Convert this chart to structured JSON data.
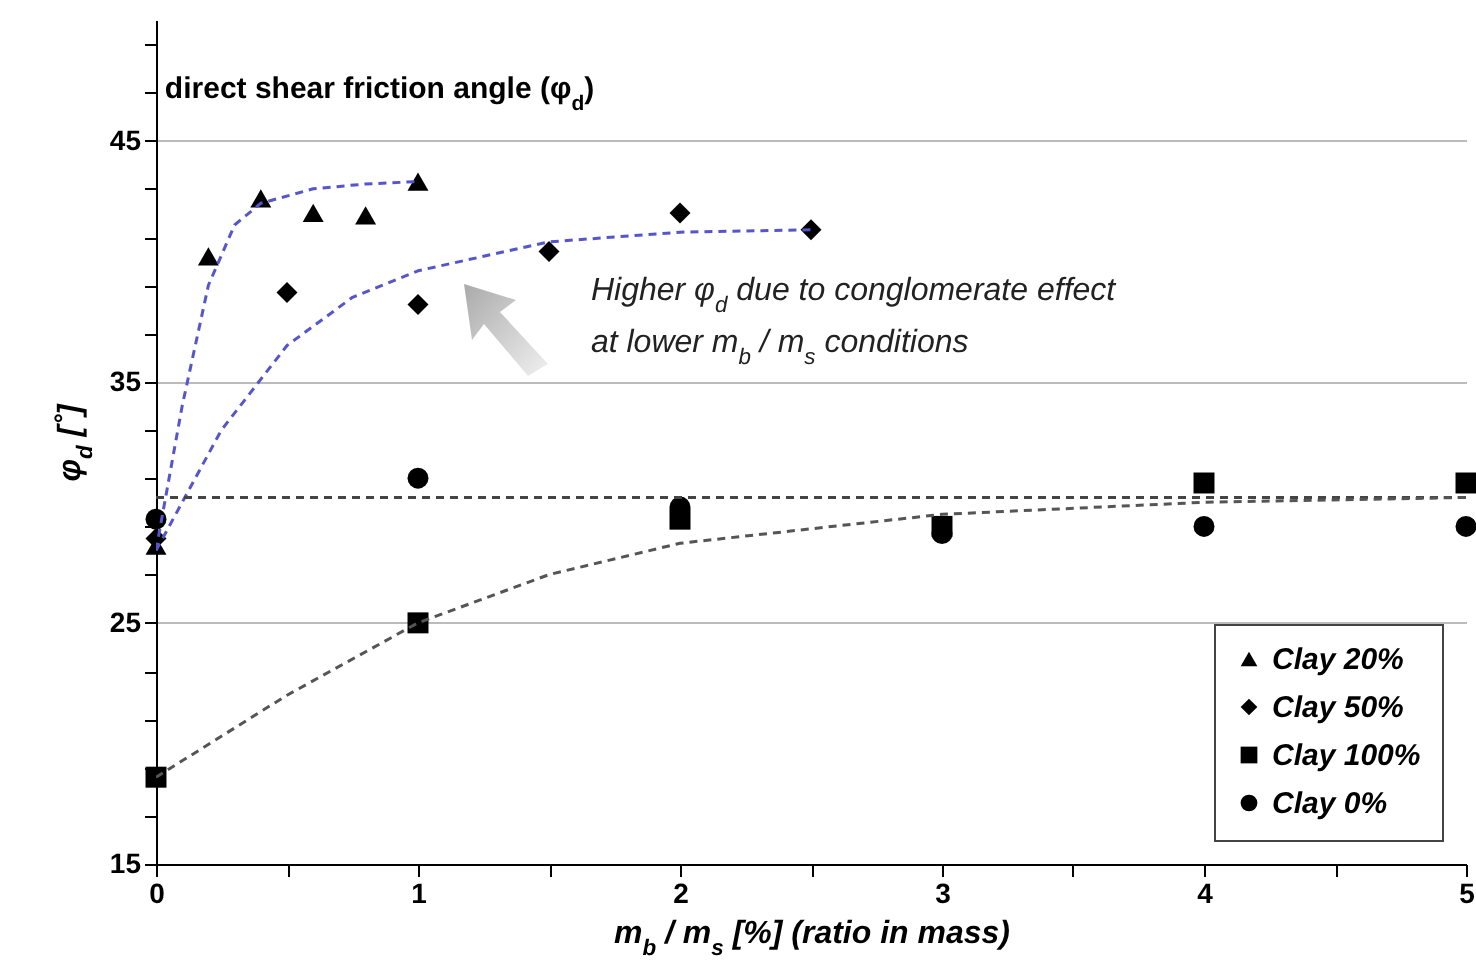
{
  "chart_data": {
    "type": "scatter",
    "title": "direct shear friction angle (φ$_{d}$)",
    "xlabel": "m$_{b}$ / m$_{s}$ [%] (ratio in mass)",
    "ylabel": "φ$_{d}$ [˚]",
    "annotations": [
      "Higher φ$_{d}$ due to conglomerate effect",
      "at lower m$_{b}$ / m$_{s}$ conditions"
    ],
    "series": [
      {
        "name": "Clay 20%",
        "color": "#000000",
        "marker": "triangle",
        "x": [
          0,
          0.2,
          0.4,
          0.6,
          0.8,
          1
        ],
        "values": [
          28.2,
          40.2,
          42.6,
          42.0,
          41.9,
          43.3
        ]
      },
      {
        "name": "Clay 50%",
        "color": "#000000",
        "marker": "diamond",
        "x": [
          0,
          0.5,
          1,
          1.5,
          2,
          2.5
        ],
        "values": [
          28.5,
          38.7,
          38.2,
          40.4,
          42.0,
          41.3
        ]
      },
      {
        "name": "Clay 100%",
        "color": "#000000",
        "marker": "square",
        "x": [
          0,
          1,
          2,
          3,
          4,
          5
        ],
        "values": [
          18.6,
          25.0,
          29.3,
          29.0,
          30.8,
          30.8
        ]
      },
      {
        "name": "Clay 0%",
        "color": "#000000",
        "marker": "circle",
        "x": [
          0,
          1,
          2,
          3,
          4,
          5
        ],
        "values": [
          29.3,
          31.0,
          29.8,
          28.7,
          29.0,
          29.0
        ]
      },
      {
        "type": "line",
        "color": "#5555cc",
        "line_style": "dashed",
        "x": [
          0,
          0.1,
          0.2,
          0.3,
          0.4,
          0.6,
          0.8,
          1
        ],
        "values": [
          28.0,
          34.0,
          39.0,
          41.5,
          42.4,
          43.0,
          43.2,
          43.3
        ]
      },
      {
        "type": "line",
        "color": "#5555cc",
        "line_style": "dashed",
        "x": [
          0,
          0.25,
          0.5,
          0.75,
          1,
          1.5,
          2,
          2.5
        ],
        "values": [
          28.0,
          33.0,
          36.5,
          38.5,
          39.6,
          40.8,
          41.2,
          41.3
        ]
      },
      {
        "type": "line",
        "color": "#444444",
        "line_style": "dashed",
        "x": [
          0,
          5
        ],
        "values": [
          30.2,
          30.2
        ]
      },
      {
        "type": "line",
        "color": "#555555",
        "line_style": "dashed",
        "x": [
          0,
          0.5,
          1,
          1.5,
          2,
          3,
          4,
          5
        ],
        "values": [
          18.6,
          22.0,
          25.0,
          27.0,
          28.3,
          29.5,
          30.0,
          30.2
        ]
      }
    ],
    "xlim": [
      0,
      5
    ],
    "ylim": [
      15,
      50
    ],
    "xticks": [
      0,
      {
        "value": 0.5,
        "label": null
      },
      1,
      {
        "value": 1.5,
        "label": null
      },
      2,
      {
        "value": 2.5,
        "label": null
      },
      3,
      {
        "value": 3.5,
        "label": null
      },
      4,
      {
        "value": 4.5,
        "label": null
      },
      5
    ],
    "yticks": [
      15,
      {
        "value": 17,
        "label": null
      },
      {
        "value": 19,
        "label": null
      },
      {
        "value": 21,
        "label": null
      },
      {
        "value": 23,
        "label": null
      },
      25,
      {
        "value": 27,
        "label": null
      },
      {
        "value": 29,
        "label": null
      },
      {
        "value": 31,
        "label": null
      },
      {
        "value": 33,
        "label": null
      },
      35,
      {
        "value": 37,
        "label": null
      },
      {
        "value": 39,
        "label": null
      },
      {
        "value": 41,
        "label": null
      },
      {
        "value": 43,
        "label": null
      },
      45,
      {
        "value": 47,
        "label": null
      },
      {
        "value": 49,
        "label": null
      }
    ],
    "grid": "y",
    "legend": "bottom right"
  }
}
